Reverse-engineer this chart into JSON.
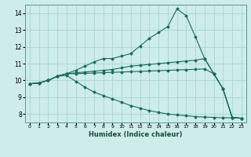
{
  "xlabel": "Humidex (Indice chaleur)",
  "background_color": "#cdecea",
  "grid_color": "#a8d5d1",
  "line_color": "#1a6b5a",
  "xlim": [
    -0.5,
    23.5
  ],
  "ylim": [
    7.5,
    14.5
  ],
  "xtick_labels": [
    "0",
    "1",
    "2",
    "3",
    "4",
    "5",
    "6",
    "7",
    "8",
    "9",
    "10",
    "11",
    "12",
    "13",
    "14",
    "15",
    "16",
    "17",
    "18",
    "19",
    "20",
    "21",
    "22",
    "23"
  ],
  "yticks": [
    8,
    9,
    10,
    11,
    12,
    13,
    14
  ],
  "series": [
    {
      "x": [
        0,
        1,
        2,
        3,
        4,
        5,
        6,
        7,
        8,
        9,
        10,
        11,
        12,
        13,
        14,
        15,
        16,
        17,
        18,
        19,
        20,
        21,
        22,
        23
      ],
      "y": [
        9.8,
        9.85,
        10.0,
        10.25,
        10.4,
        10.6,
        10.85,
        11.1,
        11.3,
        11.3,
        11.45,
        11.6,
        12.05,
        12.5,
        12.85,
        13.2,
        14.25,
        13.85,
        12.6,
        11.3,
        10.4,
        9.5,
        7.8,
        7.75
      ]
    },
    {
      "x": [
        0,
        1,
        2,
        3,
        4,
        5,
        6,
        7,
        8,
        9,
        10,
        11,
        12,
        13,
        14,
        15,
        16,
        17,
        18,
        19,
        20,
        21,
        22,
        23
      ],
      "y": [
        9.8,
        9.85,
        10.0,
        10.25,
        10.4,
        10.45,
        10.5,
        10.55,
        10.6,
        10.65,
        10.75,
        10.85,
        10.9,
        10.95,
        11.0,
        11.05,
        11.1,
        11.15,
        11.2,
        11.3,
        10.4,
        9.5,
        7.8,
        7.75
      ]
    },
    {
      "x": [
        0,
        1,
        2,
        3,
        4,
        5,
        6,
        7,
        8,
        9,
        10,
        11,
        12,
        13,
        14,
        15,
        16,
        17,
        18,
        19,
        20,
        21,
        22,
        23
      ],
      "y": [
        9.8,
        9.85,
        10.0,
        10.25,
        10.4,
        10.4,
        10.42,
        10.44,
        10.46,
        10.48,
        10.5,
        10.52,
        10.54,
        10.56,
        10.58,
        10.6,
        10.62,
        10.64,
        10.66,
        10.68,
        10.4,
        9.5,
        7.8,
        7.75
      ]
    },
    {
      "x": [
        0,
        1,
        2,
        3,
        4,
        5,
        6,
        7,
        8,
        9,
        10,
        11,
        12,
        13,
        14,
        15,
        16,
        17,
        18,
        19,
        20,
        21,
        22,
        23
      ],
      "y": [
        9.8,
        9.85,
        10.0,
        10.25,
        10.3,
        9.95,
        9.6,
        9.3,
        9.1,
        8.9,
        8.7,
        8.5,
        8.35,
        8.2,
        8.1,
        8.0,
        7.95,
        7.9,
        7.85,
        7.82,
        7.8,
        7.78,
        7.78,
        7.75
      ]
    }
  ]
}
